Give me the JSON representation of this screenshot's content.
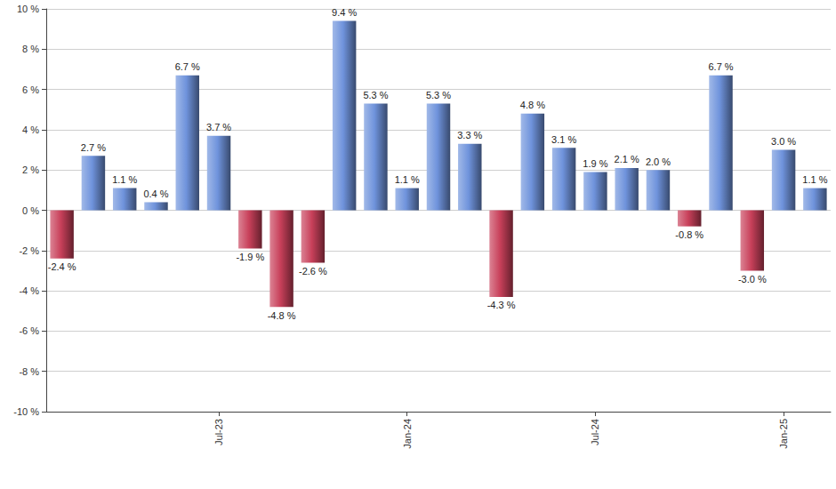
{
  "chart_data": {
    "type": "bar",
    "categories": [
      null,
      null,
      null,
      null,
      null,
      "Jul-23",
      null,
      null,
      null,
      null,
      null,
      "Jan-24",
      null,
      null,
      null,
      null,
      null,
      "Jul-24",
      null,
      null,
      null,
      null,
      null,
      "Jan-25",
      null
    ],
    "values": [
      -2.4,
      2.7,
      1.1,
      0.4,
      6.7,
      3.7,
      -1.9,
      -4.8,
      -2.6,
      9.4,
      5.3,
      1.1,
      5.3,
      3.3,
      -4.3,
      4.8,
      3.1,
      1.9,
      2.1,
      2.0,
      -0.8,
      6.7,
      -3.0,
      3.0,
      1.1
    ],
    "value_labels": [
      "-2.4 %",
      "2.7 %",
      "1.1 %",
      "0.4 %",
      "6.7 %",
      "3.7 %",
      "-1.9 %",
      "-4.8 %",
      "-2.6 %",
      "9.4 %",
      "5.3 %",
      "1.1 %",
      "5.3 %",
      "3.3 %",
      "-4.3 %",
      "4.8 %",
      "3.1 %",
      "1.9 %",
      "2.1 %",
      "2.0 %",
      "-0.8 %",
      "6.7 %",
      "-3.0 %",
      "3.0 %",
      "1.1 %"
    ],
    "colors": [
      "#c8405a",
      "#6f93dc",
      "#6f93dc",
      "#6f93dc",
      "#6f93dc",
      "#6f93dc",
      "#c8405a",
      "#c8405a",
      "#c8405a",
      "#6f93dc",
      "#6f93dc",
      "#6f93dc",
      "#6f93dc",
      "#6f93dc",
      "#c8405a",
      "#6f93dc",
      "#6f93dc",
      "#6f93dc",
      "#6f93dc",
      "#6f93dc",
      "#c8405a",
      "#6f93dc",
      "#c8405a",
      "#6f93dc",
      "#6f93dc"
    ],
    "ylim": [
      -10,
      10
    ],
    "yticks": [
      {
        "value": -10,
        "label": "-10 %"
      },
      {
        "value": -8,
        "label": "-8 %"
      },
      {
        "value": -6,
        "label": "-6 %"
      },
      {
        "value": -4,
        "label": "-4 %"
      },
      {
        "value": -2,
        "label": "-2 %"
      },
      {
        "value": 0,
        "label": "0 %"
      },
      {
        "value": 2,
        "label": "2 %"
      },
      {
        "value": 4,
        "label": "4 %"
      },
      {
        "value": 6,
        "label": "6 %"
      },
      {
        "value": 8,
        "label": "8 %"
      },
      {
        "value": 10,
        "label": "10 %"
      }
    ],
    "grid": true,
    "data_labels": true
  }
}
